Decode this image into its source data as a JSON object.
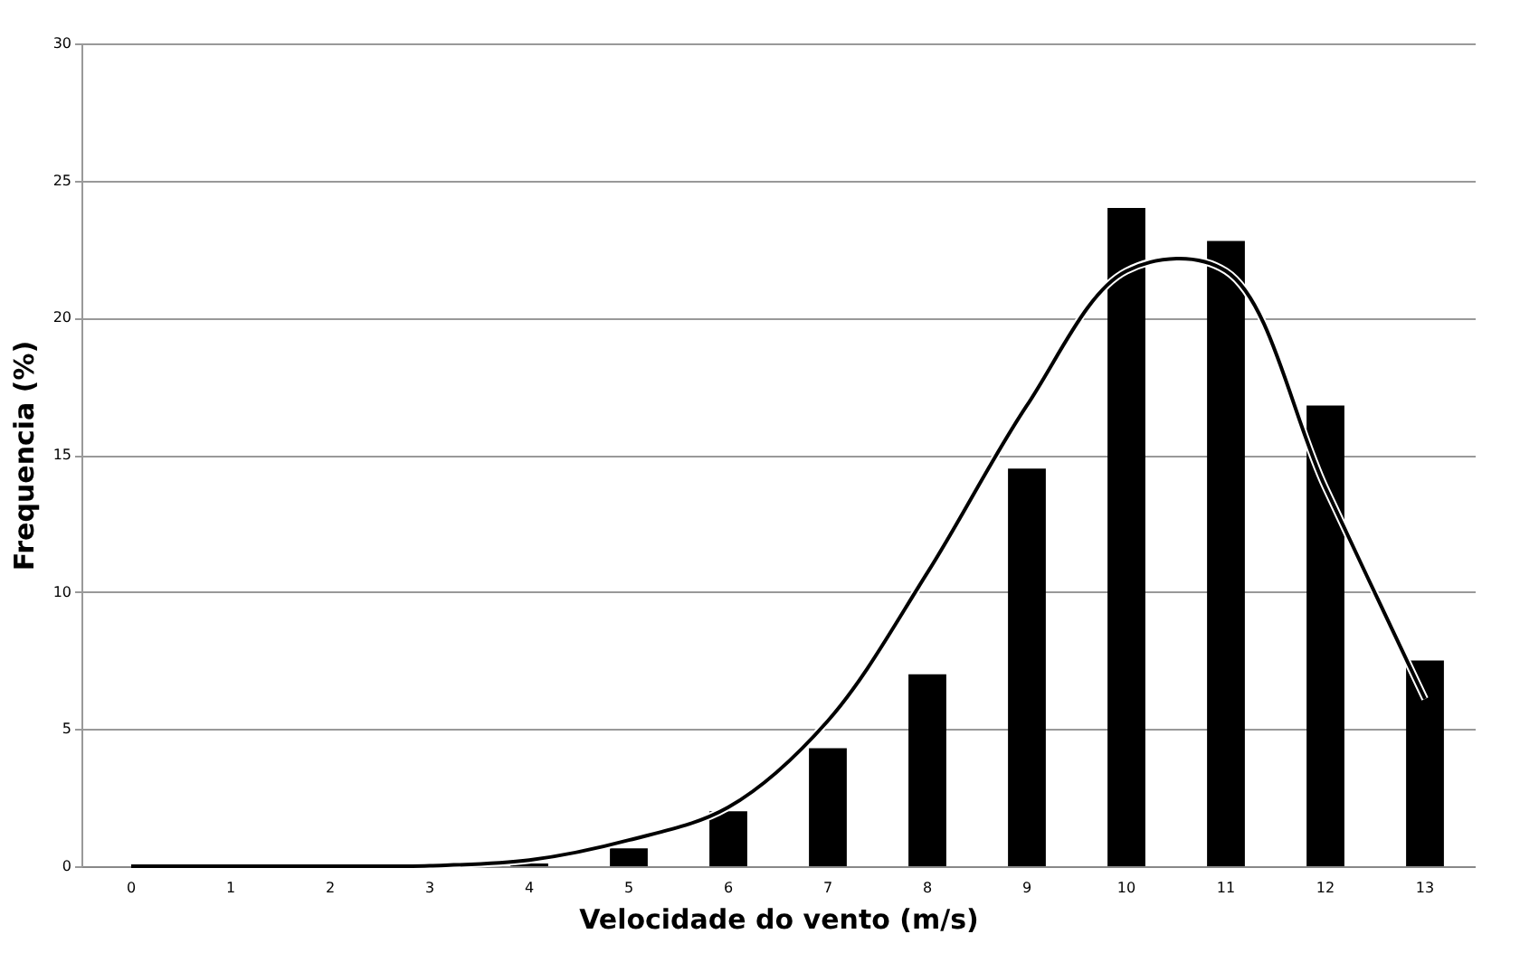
{
  "chart_data": {
    "type": "bar",
    "xlabel": "Velocidade do vento (m/s)",
    "ylabel": "Frequencia (%)",
    "categories": [
      "0",
      "1",
      "2",
      "3",
      "4",
      "5",
      "6",
      "7",
      "8",
      "9",
      "10",
      "11",
      "12",
      "13"
    ],
    "series": [
      {
        "color": "#000000",
        "values": [
          0,
          0,
          0,
          0,
          0.1,
          0.65,
          2.0,
          4.3,
          7.0,
          14.5,
          24.0,
          22.8,
          16.8,
          7.5
        ]
      },
      {
        "type": "line",
        "color": "#000000",
        "values": [
          0,
          0,
          0,
          0.02,
          0.22,
          0.95,
          2.15,
          5.3,
          10.7,
          16.8,
          21.7,
          21.7,
          13.8,
          6.1
        ]
      }
    ],
    "ylim": [
      0,
      30
    ],
    "yticks": [
      0,
      5,
      10,
      15,
      20,
      25,
      30
    ],
    "grid": "y",
    "marker": "none",
    "line_style": "solid"
  }
}
